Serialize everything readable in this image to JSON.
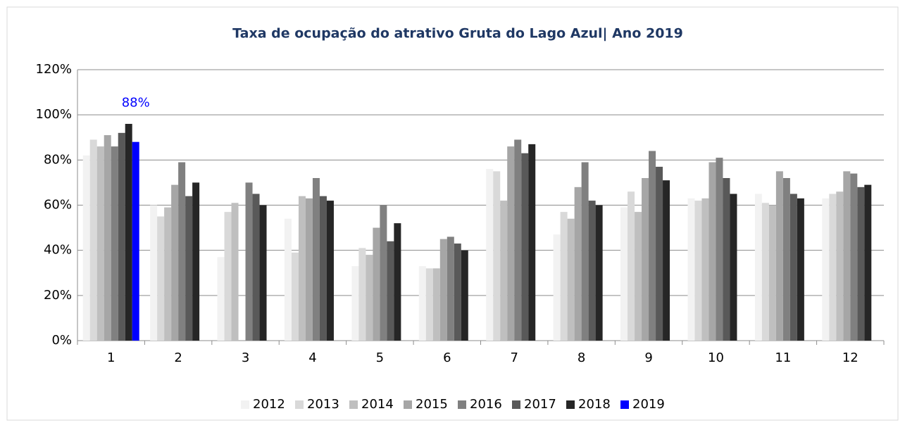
{
  "chart_data": {
    "type": "bar",
    "title": "Taxa de ocupação do atrativo Gruta do Lago Azul| Ano 2019",
    "categories": [
      "1",
      "2",
      "3",
      "4",
      "5",
      "6",
      "7",
      "8",
      "9",
      "10",
      "11",
      "12"
    ],
    "series": [
      {
        "name": "2012",
        "color": "#f2f2f2",
        "values": [
          82,
          60,
          37,
          54,
          33,
          33,
          76,
          47,
          59,
          63,
          65,
          63
        ]
      },
      {
        "name": "2013",
        "color": "#d9d9d9",
        "values": [
          89,
          55,
          57,
          39,
          41,
          32,
          75,
          57,
          66,
          62,
          61,
          65
        ]
      },
      {
        "name": "2014",
        "color": "#bfbfbf",
        "values": [
          86,
          59,
          61,
          64,
          38,
          32,
          62,
          54,
          57,
          63,
          60,
          66
        ]
      },
      {
        "name": "2015",
        "color": "#a6a6a6",
        "values": [
          91,
          69,
          null,
          63,
          50,
          45,
          86,
          68,
          72,
          79,
          75,
          75
        ]
      },
      {
        "name": "2016",
        "color": "#808080",
        "values": [
          86,
          79,
          70,
          72,
          60,
          46,
          89,
          79,
          84,
          81,
          72,
          74
        ]
      },
      {
        "name": "2017",
        "color": "#595959",
        "values": [
          92,
          64,
          65,
          64,
          44,
          43,
          83,
          62,
          77,
          72,
          65,
          68
        ]
      },
      {
        "name": "2018",
        "color": "#262626",
        "values": [
          96,
          70,
          60,
          62,
          52,
          40,
          87,
          60,
          71,
          65,
          63,
          69
        ]
      },
      {
        "name": "2019",
        "color": "#0000ff",
        "values": [
          88,
          null,
          null,
          null,
          null,
          null,
          null,
          null,
          null,
          null,
          null,
          null
        ],
        "value_labels": [
          "88%",
          null,
          null,
          null,
          null,
          null,
          null,
          null,
          null,
          null,
          null,
          null
        ]
      }
    ],
    "ylim": [
      0,
      120
    ],
    "yticks": [
      {
        "value": 0,
        "label": "0%"
      },
      {
        "value": 20,
        "label": "20%"
      },
      {
        "value": 40,
        "label": "40%"
      },
      {
        "value": 60,
        "label": "60%"
      },
      {
        "value": 80,
        "label": "80%"
      },
      {
        "value": 100,
        "label": "100%"
      },
      {
        "value": 120,
        "label": "120%"
      }
    ],
    "grid": true,
    "legend": "bottom"
  }
}
